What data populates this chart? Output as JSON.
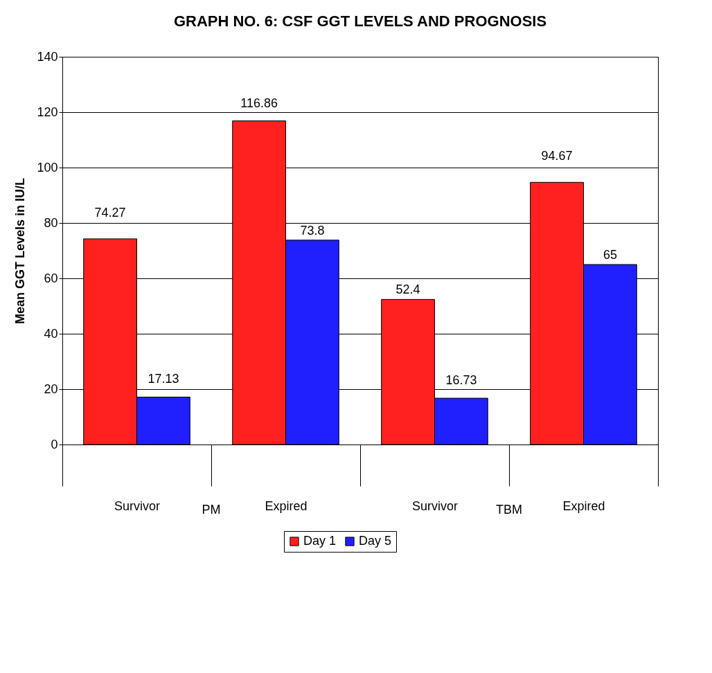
{
  "chart_data": {
    "type": "bar",
    "title": "GRAPH NO. 6: CSF GGT LEVELS AND PROGNOSIS",
    "ylabel": "Mean GGT Levels in IU/L",
    "categories": [
      "Survivor",
      "Expired",
      "Survivor",
      "Expired"
    ],
    "annotations": [
      "PM",
      "TBM"
    ],
    "series": [
      {
        "name": "Day 1",
        "color": "#ff2020",
        "values": [
          74.27,
          116.86,
          52.4,
          94.67
        ]
      },
      {
        "name": "Day 5",
        "color": "#2020ff",
        "values": [
          17.13,
          73.8,
          16.73,
          65
        ]
      }
    ],
    "ylim": [
      0,
      140
    ],
    "yticks": [
      0,
      20,
      40,
      60,
      80,
      100,
      120,
      140
    ],
    "grid": "y",
    "legend": "bottom",
    "data_labels": true
  }
}
